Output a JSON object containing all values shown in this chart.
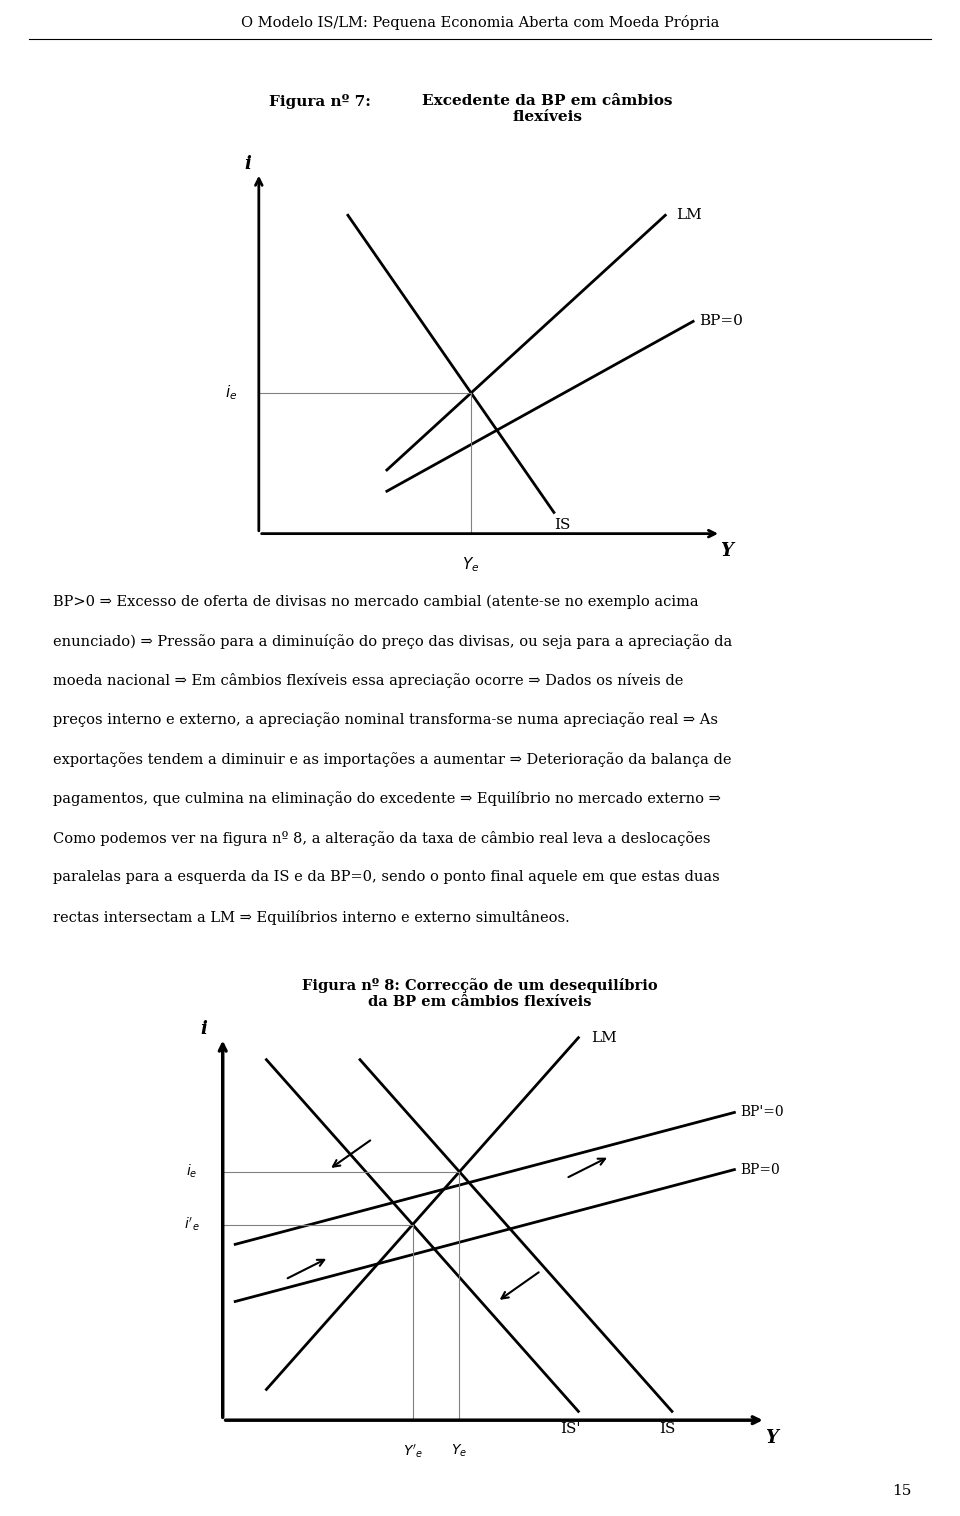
{
  "page_title": "O Modelo IS/LM: Pequena Economia Aberta com Moeda Própria",
  "fig1_title_left": "Figura nº 7:",
  "fig1_title_right": "Excedente da BP em câmbios\nflexíveis",
  "fig2_title": "Figura nº 8: Correcção de um desequilíbrio\nda BP em câmbios flexíveis",
  "para_line1": "BP>0 ⇒ Excesso de oferta de divisas no mercado cambial (atente-se no exemplo acima",
  "para_line2": "enunciado) ⇒ Pressão para a diminuíção do preço das divisas, ou seja para a apreciação da",
  "para_line3": "moeda nacional ⇒ Em câmbios flexíveis essa apreciação ocorre ⇒ Dados os níveis de",
  "para_line4": "preços interno e externo, a apreciação nominal transforma-se numa apreciação real ⇒ As",
  "para_line5": "exportações tendem a diminuir e as importações a aumentar ⇒ Deterioração da balança de",
  "para_line6": "pagamentos, que culmina na eliminação do excedente ⇒ Equilíbrio no mercado externo ⇒",
  "para_line7": "Como podemos ver na figura nº 8, a alteração da taxa de câmbio real leva a deslocações",
  "para_line8": "paralelas para a esquerda da IS e da BP=0, sendo o ponto final aquele em que estas duas",
  "para_line9": "rectas intersectam a LM ⇒ Equilíbrios interno e externo simultâneos.",
  "page_number": "15",
  "bg_color": "#ffffff",
  "text_color": "#000000"
}
